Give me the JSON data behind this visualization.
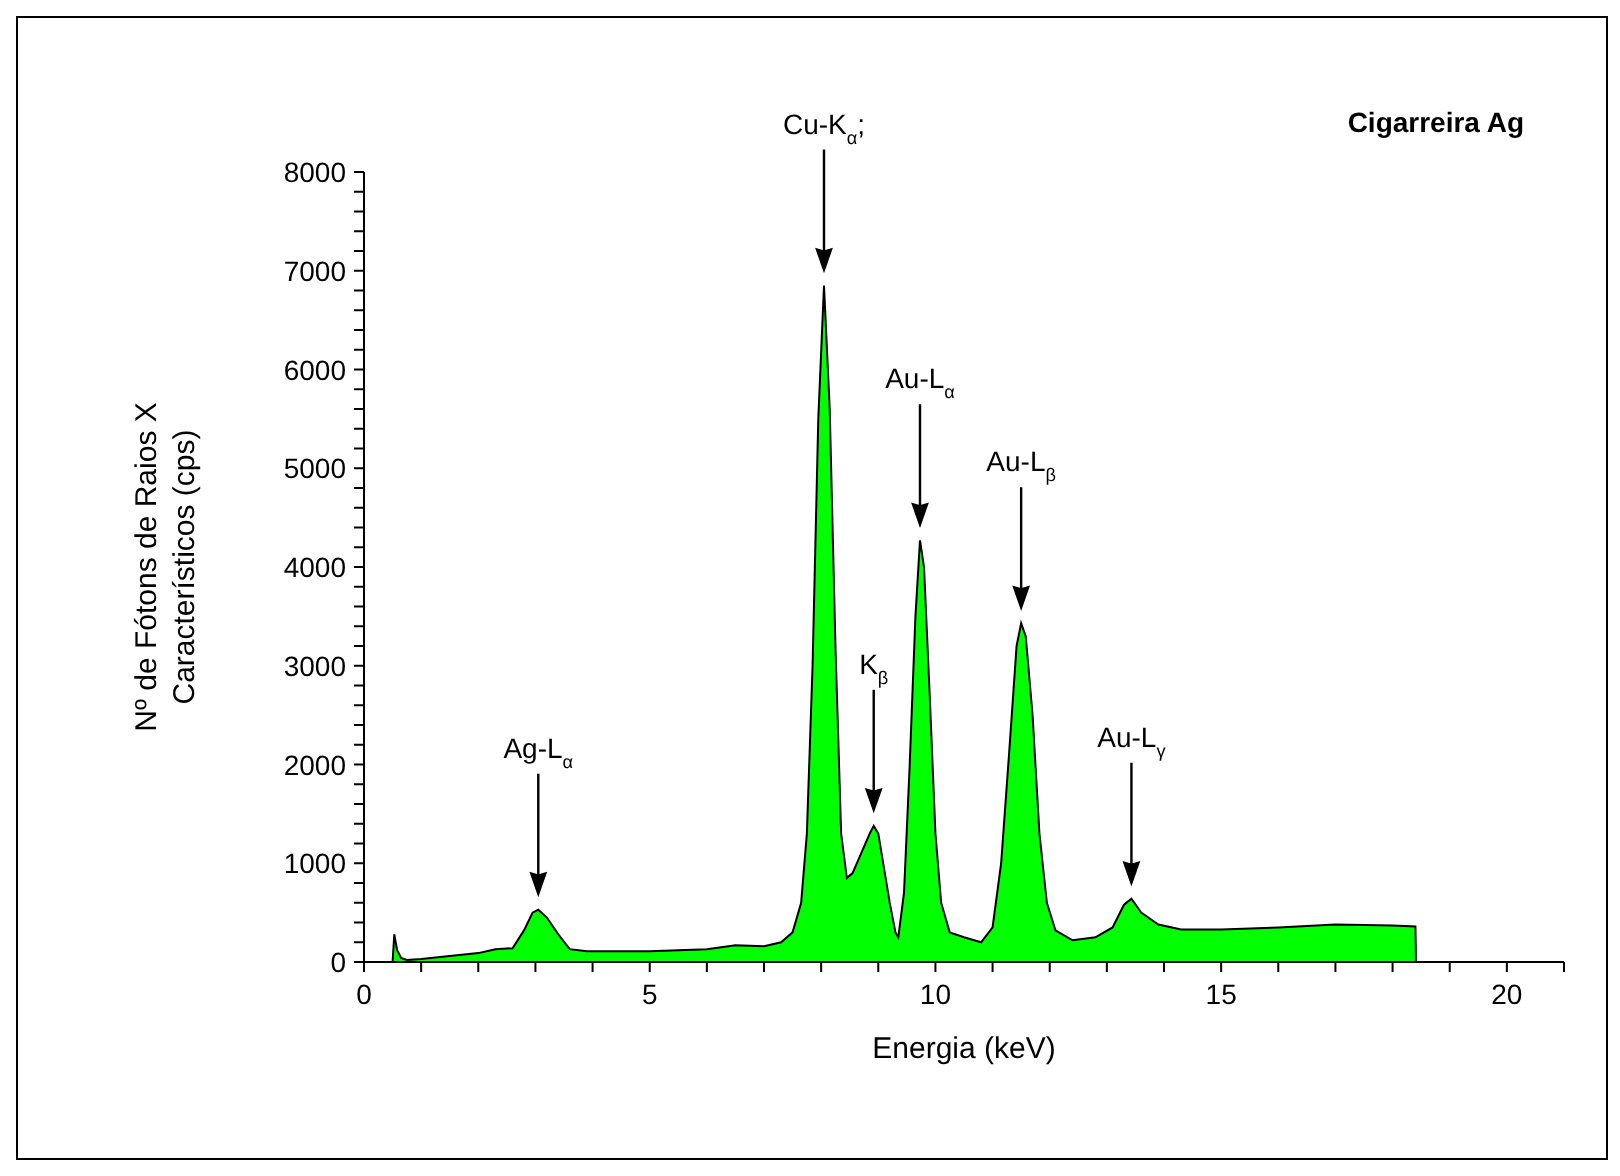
{
  "chart_data": {
    "type": "area",
    "title": "Cigarreira Ag",
    "xlabel": "Energia (keV)",
    "ylabel": "Nº de Fótons de Raios X\nCaracterísticos (cps)",
    "x": [
      0.5,
      0.53,
      0.58,
      0.65,
      0.75,
      1.0,
      1.5,
      2.0,
      2.3,
      2.6,
      2.8,
      2.95,
      3.05,
      3.2,
      3.4,
      3.6,
      3.9,
      4.5,
      5.0,
      5.5,
      6.0,
      6.5,
      7.0,
      7.3,
      7.5,
      7.65,
      7.75,
      7.85,
      7.95,
      8.05,
      8.15,
      8.25,
      8.35,
      8.45,
      8.55,
      8.7,
      8.85,
      8.92,
      9.0,
      9.1,
      9.2,
      9.3,
      9.35,
      9.45,
      9.55,
      9.65,
      9.73,
      9.8,
      9.9,
      10.0,
      10.1,
      10.25,
      10.5,
      10.8,
      11.0,
      11.15,
      11.3,
      11.42,
      11.5,
      11.58,
      11.7,
      11.82,
      11.95,
      12.1,
      12.4,
      12.8,
      13.1,
      13.3,
      13.43,
      13.6,
      13.9,
      14.3,
      15.0,
      16.0,
      17.0,
      18.0,
      18.4,
      18.41
    ],
    "values": [
      0,
      280,
      120,
      40,
      20,
      30,
      60,
      90,
      130,
      140,
      320,
      500,
      530,
      450,
      280,
      130,
      110,
      110,
      110,
      120,
      130,
      170,
      160,
      200,
      300,
      600,
      1300,
      3000,
      5500,
      6850,
      5600,
      3200,
      1300,
      850,
      900,
      1100,
      1300,
      1380,
      1300,
      950,
      600,
      300,
      250,
      700,
      2000,
      3500,
      4270,
      4000,
      2700,
      1300,
      600,
      300,
      250,
      200,
      350,
      1000,
      2200,
      3200,
      3430,
      3300,
      2500,
      1300,
      600,
      320,
      220,
      250,
      350,
      580,
      640,
      500,
      380,
      330,
      330,
      350,
      380,
      370,
      360,
      0
    ],
    "color": "#00ff00",
    "xlim": [
      0,
      21
    ],
    "xticks": [
      0,
      {
        "value": 1,
        "label": null
      },
      {
        "value": 2,
        "label": null
      },
      {
        "value": 3,
        "label": null
      },
      {
        "value": 4,
        "label": null
      },
      5,
      {
        "value": 6,
        "label": null
      },
      {
        "value": 7,
        "label": null
      },
      {
        "value": 8,
        "label": null
      },
      {
        "value": 9,
        "label": null
      },
      10,
      {
        "value": 11,
        "label": null
      },
      {
        "value": 12,
        "label": null
      },
      {
        "value": 13,
        "label": null
      },
      {
        "value": 14,
        "label": null
      },
      15,
      {
        "value": 16,
        "label": null
      },
      {
        "value": 17,
        "label": null
      },
      {
        "value": 18,
        "label": null
      },
      {
        "value": 19,
        "label": null
      },
      20,
      {
        "value": 21,
        "label": null
      }
    ],
    "ylim": [
      0,
      8000
    ],
    "yticks": [
      0,
      {
        "value": 200,
        "label": null
      },
      {
        "value": 400,
        "label": null
      },
      {
        "value": 600,
        "label": null
      },
      {
        "value": 800,
        "label": null
      },
      1000,
      {
        "value": 1200,
        "label": null
      },
      {
        "value": 1400,
        "label": null
      },
      {
        "value": 1600,
        "label": null
      },
      {
        "value": 1800,
        "label": null
      },
      2000,
      {
        "value": 2200,
        "label": null
      },
      {
        "value": 2400,
        "label": null
      },
      {
        "value": 2600,
        "label": null
      },
      {
        "value": 2800,
        "label": null
      },
      3000,
      {
        "value": 3200,
        "label": null
      },
      {
        "value": 3400,
        "label": null
      },
      {
        "value": 3600,
        "label": null
      },
      {
        "value": 3800,
        "label": null
      },
      4000,
      {
        "value": 4200,
        "label": null
      },
      {
        "value": 4400,
        "label": null
      },
      {
        "value": 4600,
        "label": null
      },
      {
        "value": 4800,
        "label": null
      },
      5000,
      {
        "value": 5200,
        "label": null
      },
      {
        "value": 5400,
        "label": null
      },
      {
        "value": 5600,
        "label": null
      },
      {
        "value": 5800,
        "label": null
      },
      6000,
      {
        "value": 6200,
        "label": null
      },
      {
        "value": 6400,
        "label": null
      },
      {
        "value": 6600,
        "label": null
      },
      {
        "value": 6800,
        "label": null
      },
      7000,
      {
        "value": 7200,
        "label": null
      },
      {
        "value": 7400,
        "label": null
      },
      {
        "value": 7600,
        "label": null
      },
      {
        "value": 7800,
        "label": null
      },
      8000
    ],
    "annotations": [
      "Ag-L$_{α}$",
      "Cu-K$_{α}$;",
      "K$_{β}$",
      "Au-L$_{α}$",
      "Au-L$_{β}$",
      "Au-L$_{γ}$"
    ]
  }
}
